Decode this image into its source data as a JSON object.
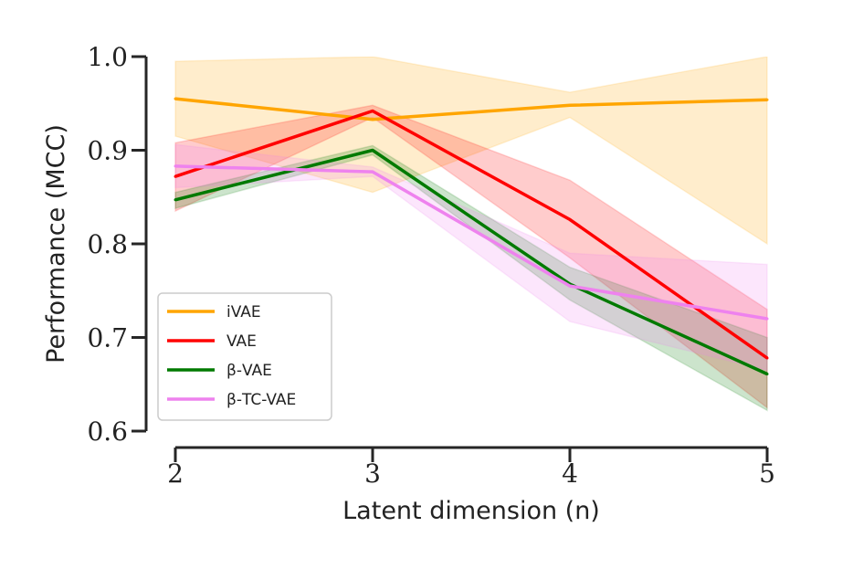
{
  "chart_data": {
    "type": "line",
    "title": "",
    "xlabel": "Latent dimension (n)",
    "ylabel": "Performance (MCC)",
    "x": [
      2,
      3,
      4,
      5
    ],
    "x_tick_labels": [
      "2",
      "3",
      "4",
      "5"
    ],
    "xlim": [
      2,
      5
    ],
    "ylim": [
      0.6,
      1.0
    ],
    "y_ticks": [
      0.6,
      0.7,
      0.8,
      0.9,
      1.0
    ],
    "y_tick_labels": [
      "0.6",
      "0.7",
      "0.8",
      "0.9",
      "1.0"
    ],
    "grid": false,
    "legend_position": "lower-left",
    "series": [
      {
        "name": "iVAE",
        "color": "#FFA500",
        "values": [
          0.955,
          0.933,
          0.948,
          0.954
        ],
        "lower": [
          0.915,
          0.855,
          0.935,
          0.8
        ],
        "upper": [
          0.995,
          1.0,
          0.962,
          1.0
        ]
      },
      {
        "name": "VAE",
        "color": "#FF0000",
        "values": [
          0.872,
          0.942,
          0.826,
          0.678
        ],
        "lower": [
          0.835,
          0.935,
          0.785,
          0.625
        ],
        "upper": [
          0.908,
          0.948,
          0.868,
          0.73
        ]
      },
      {
        "name": "β-VAE",
        "color": "#007A00",
        "values": [
          0.847,
          0.9,
          0.757,
          0.661
        ],
        "lower": [
          0.838,
          0.895,
          0.74,
          0.622
        ],
        "upper": [
          0.855,
          0.905,
          0.775,
          0.7
        ]
      },
      {
        "name": "β-TC-VAE",
        "color": "#EE82EE",
        "values": [
          0.883,
          0.877,
          0.755,
          0.72
        ],
        "lower": [
          0.86,
          0.872,
          0.717,
          0.665
        ],
        "upper": [
          0.906,
          0.882,
          0.79,
          0.778
        ]
      }
    ]
  }
}
